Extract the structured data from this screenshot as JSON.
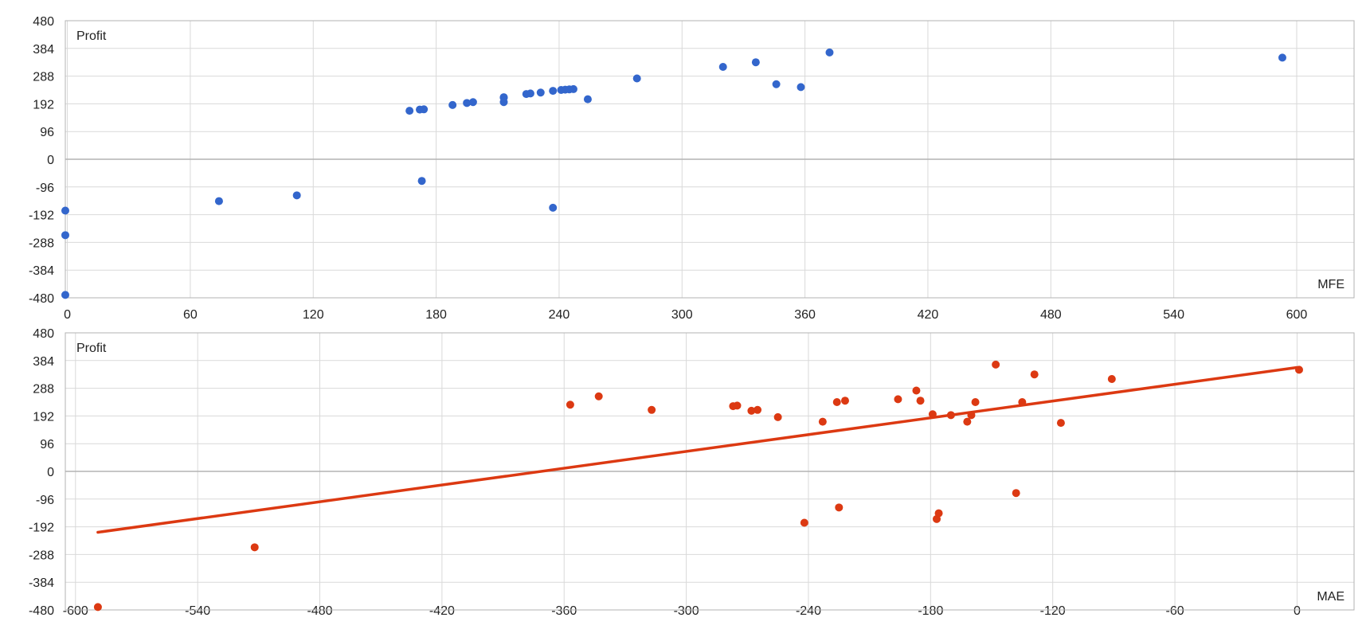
{
  "chart_data": [
    {
      "type": "scatter",
      "xlabel": "MFE",
      "ylabel": "Profit",
      "xlim": [
        -1,
        628
      ],
      "ylim": [
        -480,
        480
      ],
      "xticks": [
        0,
        60,
        120,
        180,
        240,
        300,
        360,
        420,
        480,
        540,
        600
      ],
      "yticks": [
        -480,
        -384,
        -288,
        -192,
        -96,
        0,
        96,
        192,
        288,
        384,
        480
      ],
      "grid": true,
      "colors": {
        "points": "#3366cc",
        "grid": "#d9d9d9",
        "zero_line": "#b3b3b3",
        "frame": "#b3b3b3"
      },
      "series": [
        {
          "points": [
            [
              -1,
              -178
            ],
            [
              -1,
              -263
            ],
            [
              -1,
              -470
            ],
            [
              74,
              -145
            ],
            [
              112,
              -125
            ],
            [
              167,
              168
            ],
            [
              172,
              172
            ],
            [
              174,
              173
            ],
            [
              173,
              -75
            ],
            [
              188,
              188
            ],
            [
              195,
              195
            ],
            [
              198,
              198
            ],
            [
              213,
              213
            ],
            [
              213,
              215
            ],
            [
              213,
              198
            ],
            [
              224,
              226
            ],
            [
              226,
              228
            ],
            [
              231,
              231
            ],
            [
              237,
              237
            ],
            [
              237,
              -168
            ],
            [
              241,
              240
            ],
            [
              243,
              241
            ],
            [
              245,
              242
            ],
            [
              247,
              243
            ],
            [
              254,
              208
            ],
            [
              278,
              280
            ],
            [
              320,
              320
            ],
            [
              336,
              336
            ],
            [
              346,
              260
            ],
            [
              358,
              250
            ],
            [
              372,
              370
            ],
            [
              593,
              352
            ]
          ]
        }
      ]
    },
    {
      "type": "scatter",
      "xlabel": "MAE",
      "ylabel": "Profit",
      "xlim": [
        -605,
        28
      ],
      "ylim": [
        -480,
        480
      ],
      "xticks": [
        -600,
        -540,
        -480,
        -420,
        -360,
        -300,
        -240,
        -180,
        -120,
        -60,
        0
      ],
      "yticks": [
        -480,
        -384,
        -288,
        -192,
        -96,
        0,
        96,
        192,
        288,
        384,
        480
      ],
      "grid": true,
      "trendline": {
        "x": [
          -589,
          0
        ],
        "y": [
          -211,
          360
        ]
      },
      "colors": {
        "points": "#dc3912",
        "trend": "#dc3912",
        "grid": "#d9d9d9",
        "zero_line": "#b3b3b3",
        "frame": "#b3b3b3"
      },
      "series": [
        {
          "points": [
            [
              -589,
              -470
            ],
            [
              -512,
              -263
            ],
            [
              -357,
              231
            ],
            [
              -343,
              260
            ],
            [
              -317,
              213
            ],
            [
              -277,
              226
            ],
            [
              -275,
              228
            ],
            [
              -268,
              210
            ],
            [
              -265,
              213
            ],
            [
              -255,
              188
            ],
            [
              -242,
              -178
            ],
            [
              -233,
              172
            ],
            [
              -226,
              240
            ],
            [
              -225,
              -125
            ],
            [
              -222,
              245
            ],
            [
              -196,
              250
            ],
            [
              -187,
              280
            ],
            [
              -185,
              245
            ],
            [
              -179,
              198
            ],
            [
              -177,
              -165
            ],
            [
              -176,
              -145
            ],
            [
              -170,
              195
            ],
            [
              -162,
              172
            ],
            [
              -160,
              195
            ],
            [
              -158,
              240
            ],
            [
              -148,
              370
            ],
            [
              -138,
              -75
            ],
            [
              -135,
              240
            ],
            [
              -129,
              336
            ],
            [
              -116,
              168
            ],
            [
              -91,
              320
            ],
            [
              1,
              352
            ]
          ]
        }
      ]
    }
  ]
}
